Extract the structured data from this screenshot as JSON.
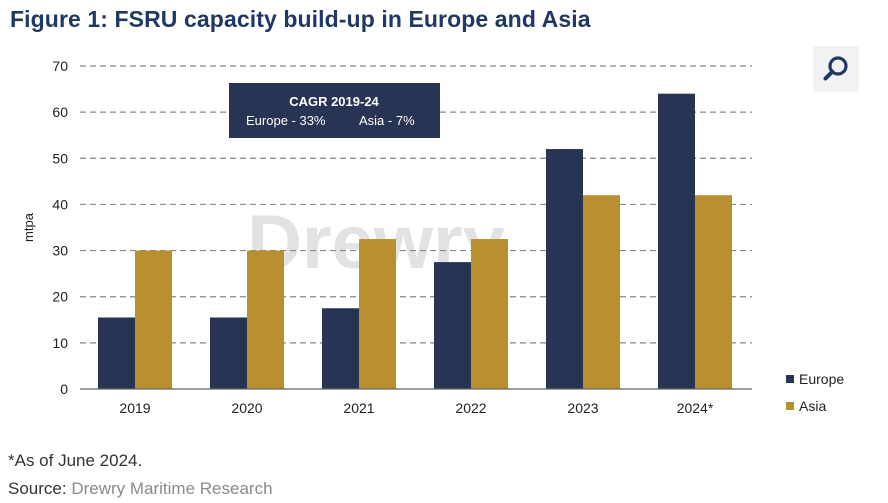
{
  "title": "Figure 1: FSRU capacity build-up in Europe and Asia",
  "zoom_icon": "magnifier-icon",
  "watermark": "Drewry",
  "cagr_box": {
    "title": "CAGR 2019-24",
    "europe": "Europe - 33%",
    "asia": "Asia - 7%"
  },
  "footnote": "*As of June 2024.",
  "source": {
    "label": "Source:",
    "text": "Drewry Maritime Research"
  },
  "colors": {
    "title": "#1f3864",
    "europe": "#283454",
    "asia": "#b8902f",
    "box": "#283454",
    "grid": "#888888"
  },
  "chart_data": {
    "type": "bar",
    "title": "Figure 1: FSRU capacity build-up in Europe and Asia",
    "xlabel": "",
    "ylabel": "mtpa",
    "ylim": [
      0,
      70
    ],
    "yticks": [
      0,
      10,
      20,
      30,
      40,
      50,
      60,
      70
    ],
    "grid": true,
    "legend_position": "bottom-right",
    "categories": [
      "2019",
      "2020",
      "2021",
      "2022",
      "2023",
      "2024*"
    ],
    "series": [
      {
        "name": "Europe",
        "values": [
          15.5,
          15.5,
          17.5,
          27.5,
          52,
          64
        ]
      },
      {
        "name": "Asia",
        "values": [
          30,
          30,
          32.5,
          32.5,
          42,
          42
        ]
      }
    ]
  }
}
